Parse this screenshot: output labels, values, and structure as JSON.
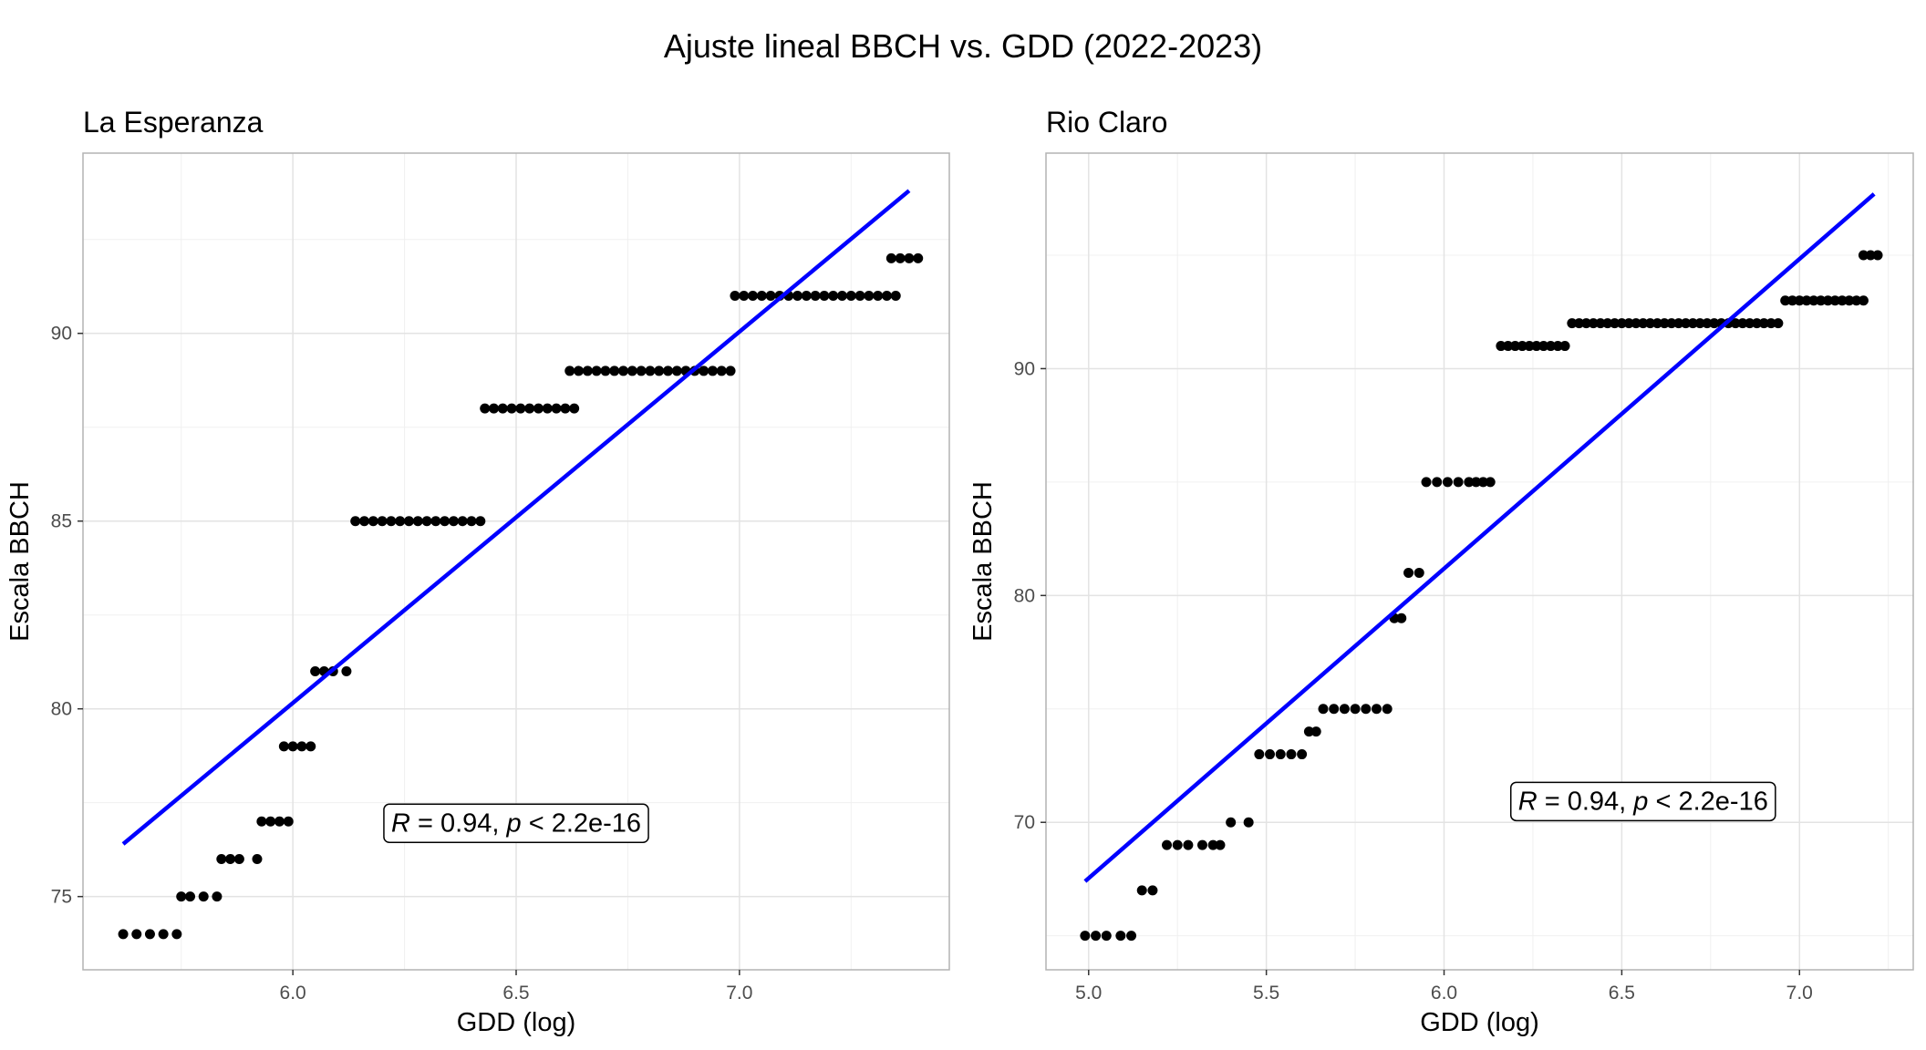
{
  "title": "Ajuste lineal BBCH vs. GDD (2022-2023)",
  "chart_data": [
    {
      "type": "scatter",
      "title": "La Esperanza",
      "xlabel": "GDD (log)",
      "ylabel": "Escala BBCH",
      "xlim": [
        5.53,
        7.47
      ],
      "ylim": [
        73.05,
        94.8
      ],
      "xticks": [
        6.0,
        6.5,
        7.0
      ],
      "xtick_labels": [
        "6.0",
        "6.5",
        "7.0"
      ],
      "yticks": [
        75,
        80,
        85,
        90
      ],
      "ytick_labels": [
        "75",
        "80",
        "85",
        "90"
      ],
      "grid": true,
      "legend": "none",
      "fit_line": {
        "x": [
          5.62,
          7.38
        ],
        "y": [
          76.4,
          93.8
        ],
        "color": "#0000ff"
      },
      "annotation": {
        "r_label": "R",
        "r_value": " = 0.94, ",
        "p_label": "p",
        "p_value": " < 2.2e-16",
        "x": 6.5,
        "y": 77.0
      },
      "series": [
        {
          "bbch": 74,
          "x": [
            5.62,
            5.65,
            5.68,
            5.71,
            5.74
          ]
        },
        {
          "bbch": 75,
          "x": [
            5.75,
            5.77,
            5.8,
            5.83
          ]
        },
        {
          "bbch": 76,
          "x": [
            5.84,
            5.86,
            5.88,
            5.92
          ]
        },
        {
          "bbch": 77,
          "x": [
            5.93,
            5.95,
            5.97,
            5.99
          ]
        },
        {
          "bbch": 79,
          "x": [
            5.98,
            6.0,
            6.02,
            6.04
          ]
        },
        {
          "bbch": 81,
          "x": [
            6.05,
            6.07,
            6.09,
            6.12
          ]
        },
        {
          "bbch": 85,
          "x": [
            6.14,
            6.16,
            6.18,
            6.2,
            6.22,
            6.24,
            6.26,
            6.28,
            6.3,
            6.32,
            6.34,
            6.36,
            6.38,
            6.4,
            6.42
          ]
        },
        {
          "bbch": 88,
          "x": [
            6.43,
            6.45,
            6.47,
            6.49,
            6.51,
            6.53,
            6.55,
            6.57,
            6.59,
            6.61,
            6.63
          ]
        },
        {
          "bbch": 89,
          "x": [
            6.62,
            6.64,
            6.66,
            6.68,
            6.7,
            6.72,
            6.74,
            6.76,
            6.78,
            6.8,
            6.82,
            6.84,
            6.86,
            6.88,
            6.9,
            6.92,
            6.94,
            6.96,
            6.98
          ]
        },
        {
          "bbch": 91,
          "x": [
            6.99,
            7.01,
            7.03,
            7.05,
            7.07,
            7.09,
            7.11,
            7.13,
            7.15,
            7.17,
            7.19,
            7.21,
            7.23,
            7.25,
            7.27,
            7.29,
            7.31,
            7.33,
            7.35
          ]
        },
        {
          "bbch": 92,
          "x": [
            7.34,
            7.36,
            7.38,
            7.4
          ]
        }
      ]
    },
    {
      "type": "scatter",
      "title": "Rio Claro",
      "xlabel": "GDD (log)",
      "ylabel": "Escala BBCH",
      "xlim": [
        4.88,
        7.32
      ],
      "ylim": [
        63.5,
        99.5
      ],
      "xticks": [
        5.0,
        5.5,
        6.0,
        6.5,
        7.0
      ],
      "xtick_labels": [
        "5.0",
        "5.5",
        "6.0",
        "6.5",
        "7.0"
      ],
      "yticks": [
        70,
        80,
        90
      ],
      "ytick_labels": [
        "70",
        "80",
        "90"
      ],
      "grid": true,
      "legend": "none",
      "fit_line": {
        "x": [
          4.99,
          7.21
        ],
        "y": [
          67.4,
          97.7
        ],
        "color": "#0000ff"
      },
      "annotation": {
        "r_label": "R",
        "r_value": " = 0.94, ",
        "p_label": "p",
        "p_value": " < 2.2e-16",
        "x": 6.56,
        "y": 71.0
      },
      "series": [
        {
          "bbch": 65,
          "x": [
            4.99,
            5.02,
            5.05,
            5.09,
            5.12
          ]
        },
        {
          "bbch": 67,
          "x": [
            5.15,
            5.18
          ]
        },
        {
          "bbch": 69,
          "x": [
            5.22,
            5.25,
            5.28,
            5.32,
            5.35,
            5.37
          ]
        },
        {
          "bbch": 70,
          "x": [
            5.4,
            5.45
          ]
        },
        {
          "bbch": 73,
          "x": [
            5.48,
            5.51,
            5.54,
            5.57,
            5.6
          ]
        },
        {
          "bbch": 74,
          "x": [
            5.62,
            5.64
          ]
        },
        {
          "bbch": 75,
          "x": [
            5.66,
            5.69,
            5.72,
            5.75,
            5.78,
            5.81,
            5.84
          ]
        },
        {
          "bbch": 79,
          "x": [
            5.86,
            5.88
          ]
        },
        {
          "bbch": 81,
          "x": [
            5.9,
            5.93
          ]
        },
        {
          "bbch": 85,
          "x": [
            5.95,
            5.98,
            6.01,
            6.04,
            6.07,
            6.09,
            6.11,
            6.13
          ]
        },
        {
          "bbch": 91,
          "x": [
            6.16,
            6.18,
            6.2,
            6.22,
            6.24,
            6.26,
            6.28,
            6.3,
            6.32,
            6.34
          ]
        },
        {
          "bbch": 92,
          "x": [
            6.36,
            6.38,
            6.4,
            6.42,
            6.44,
            6.46,
            6.48,
            6.5,
            6.52,
            6.54,
            6.56,
            6.58,
            6.6,
            6.62,
            6.64,
            6.66,
            6.68,
            6.7,
            6.72,
            6.74,
            6.76,
            6.78,
            6.8,
            6.82,
            6.84,
            6.86,
            6.88,
            6.9,
            6.92,
            6.94
          ]
        },
        {
          "bbch": 93,
          "x": [
            6.96,
            6.98,
            7.0,
            7.02,
            7.04,
            7.06,
            7.08,
            7.1,
            7.12,
            7.14,
            7.16,
            7.18
          ]
        },
        {
          "bbch": 95,
          "x": [
            7.18,
            7.2,
            7.22
          ]
        }
      ]
    }
  ]
}
